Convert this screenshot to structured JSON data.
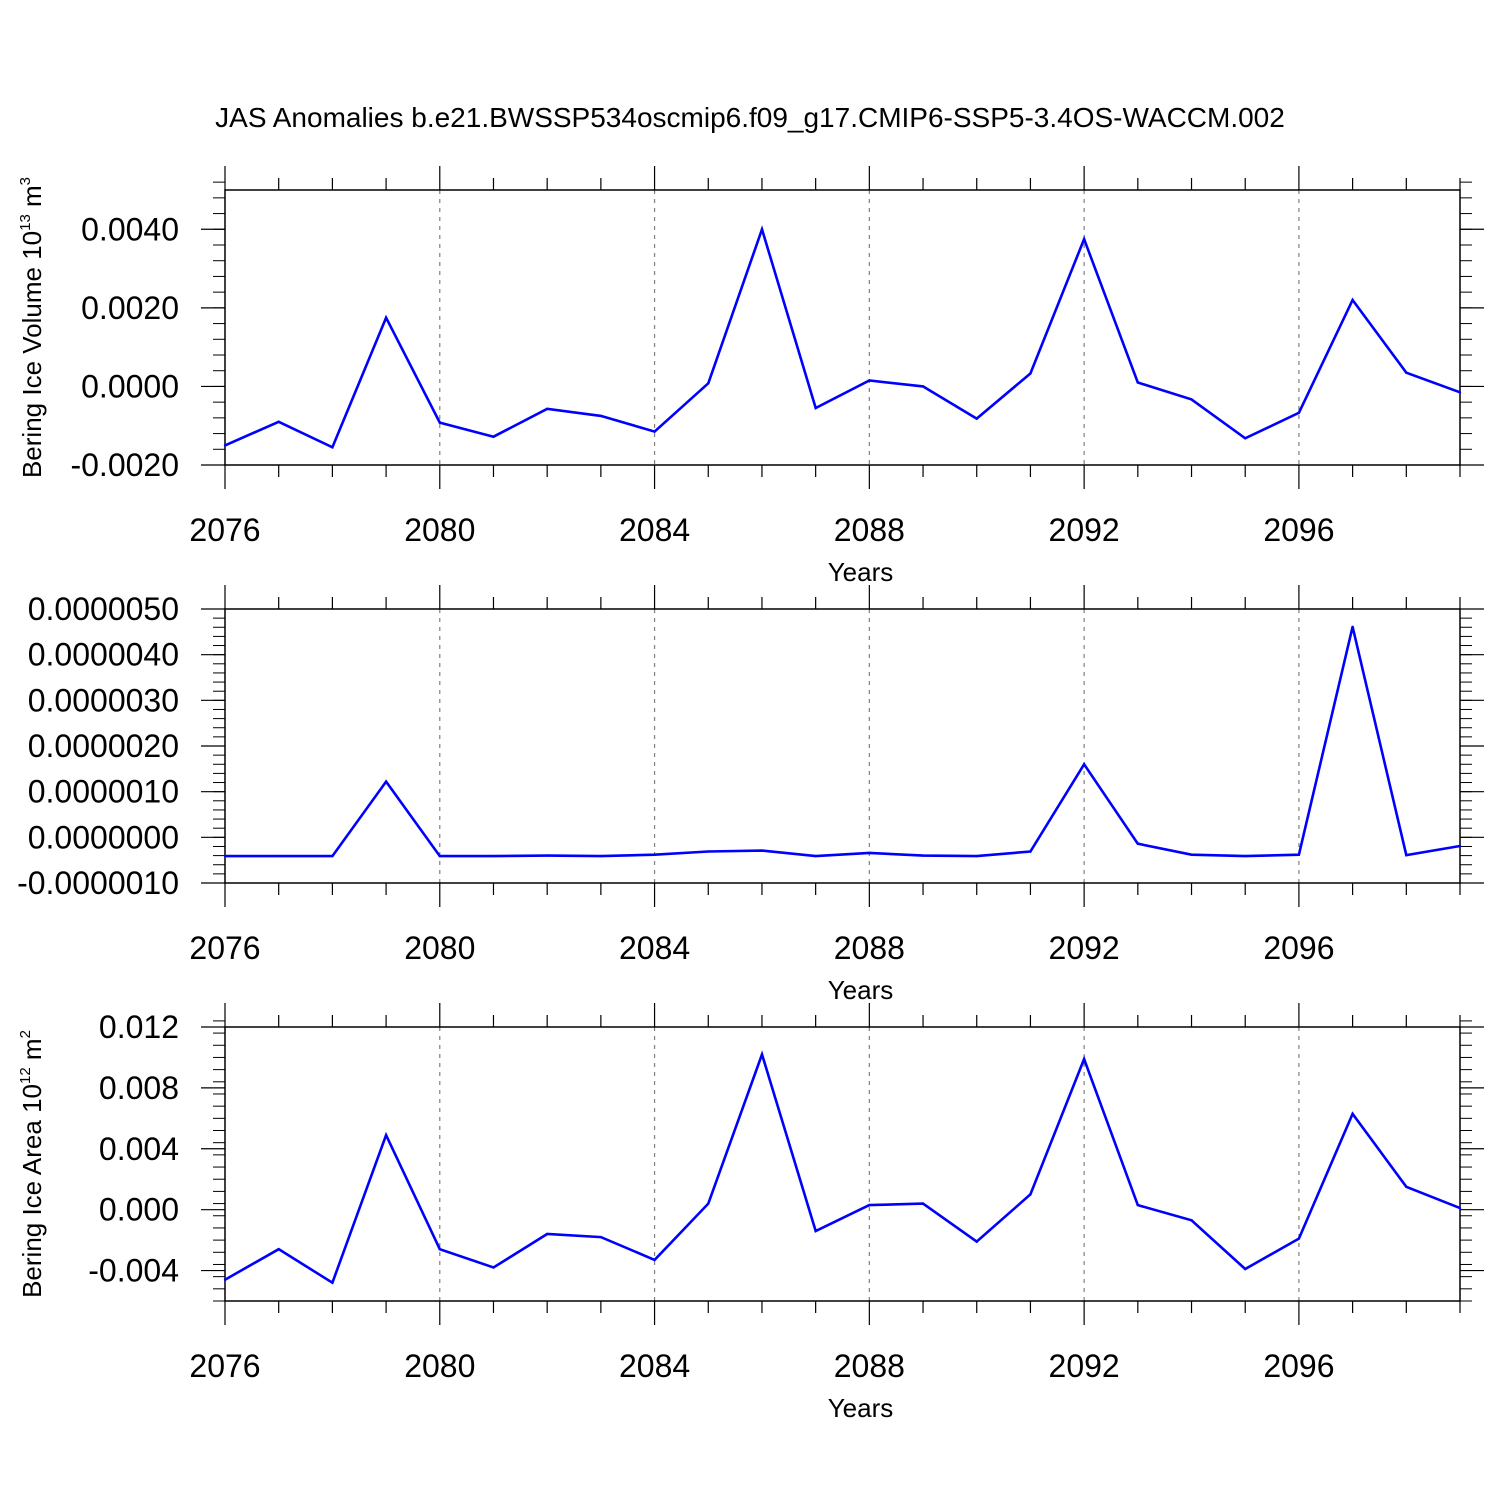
{
  "title": "JAS Anomalies b.e21.BWSSP534oscmip6.f09_g17.CMIP6-SSP5-3.4OS-WACCM.002",
  "colors": {
    "line": "#0000ff",
    "frame": "#000000",
    "grid": "#808080"
  },
  "chart_data": [
    {
      "type": "line",
      "ylabel": {
        "main": "Bering Ice Volume 10",
        "exp": "13",
        "unit": " m",
        "unit_exp": "3"
      },
      "xlabel": "Years",
      "xlim": [
        2076,
        2099
      ],
      "ylim": [
        -0.002,
        0.005
      ],
      "yticks": [
        -0.002,
        0.0,
        0.002,
        0.004
      ],
      "ytick_labels": [
        "-0.0020",
        "0.0000",
        "0.0020",
        "0.0040"
      ],
      "xticks": [
        2076,
        2080,
        2084,
        2088,
        2092,
        2096
      ],
      "xtick_labels": [
        "2076",
        "2080",
        "2084",
        "2088",
        "2092",
        "2096"
      ],
      "x": [
        2076,
        2077,
        2078,
        2079,
        2080,
        2081,
        2082,
        2083,
        2084,
        2085,
        2086,
        2087,
        2088,
        2089,
        2090,
        2091,
        2092,
        2093,
        2094,
        2095,
        2096,
        2097,
        2098,
        2099
      ],
      "values": [
        -0.0015,
        -0.0009,
        -0.00155,
        0.00175,
        -0.00092,
        -0.00128,
        -0.00057,
        -0.00075,
        -0.00115,
        8e-05,
        0.004,
        -0.00055,
        0.00015,
        0.0,
        -0.00082,
        0.00033,
        0.00375,
        0.0001,
        -0.00033,
        -0.00132,
        -0.00067,
        0.0022,
        0.00035,
        -0.00015
      ],
      "grid": "vertical dashed"
    },
    {
      "type": "line",
      "ylabel": null,
      "xlabel": "Years",
      "xlim": [
        2076,
        2099
      ],
      "ylim": [
        -1e-06,
        5e-06
      ],
      "yticks": [
        -1e-06,
        0.0,
        1e-06,
        2e-06,
        3e-06,
        4e-06,
        5e-06
      ],
      "ytick_labels": [
        "-0.0000010",
        "0.0000000",
        "0.0000010",
        "0.0000020",
        "0.0000030",
        "0.0000040",
        "0.0000050"
      ],
      "xticks": [
        2076,
        2080,
        2084,
        2088,
        2092,
        2096
      ],
      "xtick_labels": [
        "2076",
        "2080",
        "2084",
        "2088",
        "2092",
        "2096"
      ],
      "x": [
        2076,
        2077,
        2078,
        2079,
        2080,
        2081,
        2082,
        2083,
        2084,
        2085,
        2086,
        2087,
        2088,
        2089,
        2090,
        2091,
        2092,
        2093,
        2094,
        2095,
        2096,
        2097,
        2098,
        2099
      ],
      "values": [
        -4.1e-07,
        -4.1e-07,
        -4.1e-07,
        1.22e-06,
        -4.1e-07,
        -4.1e-07,
        -4e-07,
        -4.1e-07,
        -3.8e-07,
        -3.1e-07,
        -2.9e-07,
        -4.1e-07,
        -3.4e-07,
        -4e-07,
        -4.1e-07,
        -3.1e-07,
        1.6e-06,
        -1.4e-07,
        -3.8e-07,
        -4.1e-07,
        -3.8e-07,
        4.61e-06,
        -3.9e-07,
        -1.9e-07
      ],
      "grid": "vertical dashed"
    },
    {
      "type": "line",
      "ylabel": {
        "main": "Bering Ice Area 10",
        "exp": "12",
        "unit": " m",
        "unit_exp": "2"
      },
      "xlabel": "Years",
      "xlim": [
        2076,
        2099
      ],
      "ylim": [
        -0.006,
        0.012
      ],
      "yticks": [
        -0.004,
        0.0,
        0.004,
        0.008,
        0.012
      ],
      "ytick_labels": [
        "-0.004",
        "0.000",
        "0.004",
        "0.008",
        "0.012"
      ],
      "xticks": [
        2076,
        2080,
        2084,
        2088,
        2092,
        2096
      ],
      "xtick_labels": [
        "2076",
        "2080",
        "2084",
        "2088",
        "2092",
        "2096"
      ],
      "x": [
        2076,
        2077,
        2078,
        2079,
        2080,
        2081,
        2082,
        2083,
        2084,
        2085,
        2086,
        2087,
        2088,
        2089,
        2090,
        2091,
        2092,
        2093,
        2094,
        2095,
        2096,
        2097,
        2098,
        2099
      ],
      "values": [
        -0.0046,
        -0.0026,
        -0.0048,
        0.0049,
        -0.0026,
        -0.0038,
        -0.0016,
        -0.0018,
        -0.0033,
        0.0004,
        0.0102,
        -0.0014,
        0.0003,
        0.0004,
        -0.0021,
        0.001,
        0.0099,
        0.0003,
        -0.0007,
        -0.0039,
        -0.0019,
        0.0063,
        0.0015,
        0.0001
      ],
      "grid": "vertical dashed"
    }
  ]
}
